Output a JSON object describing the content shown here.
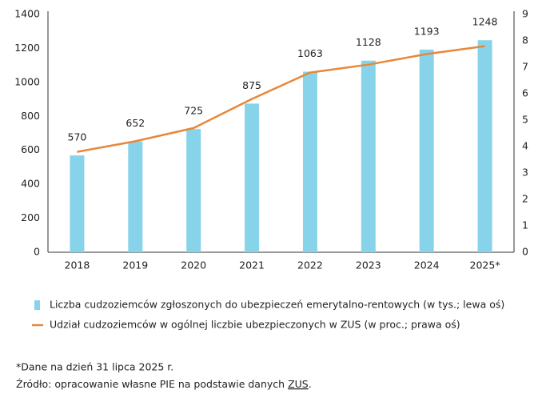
{
  "chart_data": {
    "type": "bar_line",
    "categories": [
      "2018",
      "2019",
      "2020",
      "2021",
      "2022",
      "2023",
      "2024",
      "2025*"
    ],
    "series": [
      {
        "name": "Liczba cudzoziemców zgłoszonych do ubezpieczeń emerytalno-rentowych (w tys.; lewa oś)",
        "type": "bar",
        "color": "#87d4ea",
        "values": [
          570,
          652,
          725,
          875,
          1063,
          1128,
          1193,
          1248
        ]
      },
      {
        "name": "Udział cudzoziemców w ogólnej liczbie ubezpieczonych w ZUS (w proc.; prawa oś)",
        "type": "line",
        "axis": "y2",
        "color": "#e8873a",
        "values": [
          3.8,
          4.2,
          4.7,
          5.8,
          6.8,
          7.1,
          7.5,
          7.8
        ]
      }
    ],
    "ylim": [
      0,
      1400
    ],
    "yticks": [
      0,
      200,
      400,
      600,
      800,
      1000,
      1200,
      1400
    ],
    "y2lim": [
      0,
      9
    ],
    "y2ticks": [
      0,
      1,
      2,
      3,
      4,
      5,
      6,
      7,
      8,
      9
    ],
    "footnote": "*Dane na dzień 31 lipca 2025 r.",
    "source_prefix": "Źródło: opracowanie własne PIE na podstawie danych",
    "source_link": "ZUS",
    "source_suffix": "."
  }
}
